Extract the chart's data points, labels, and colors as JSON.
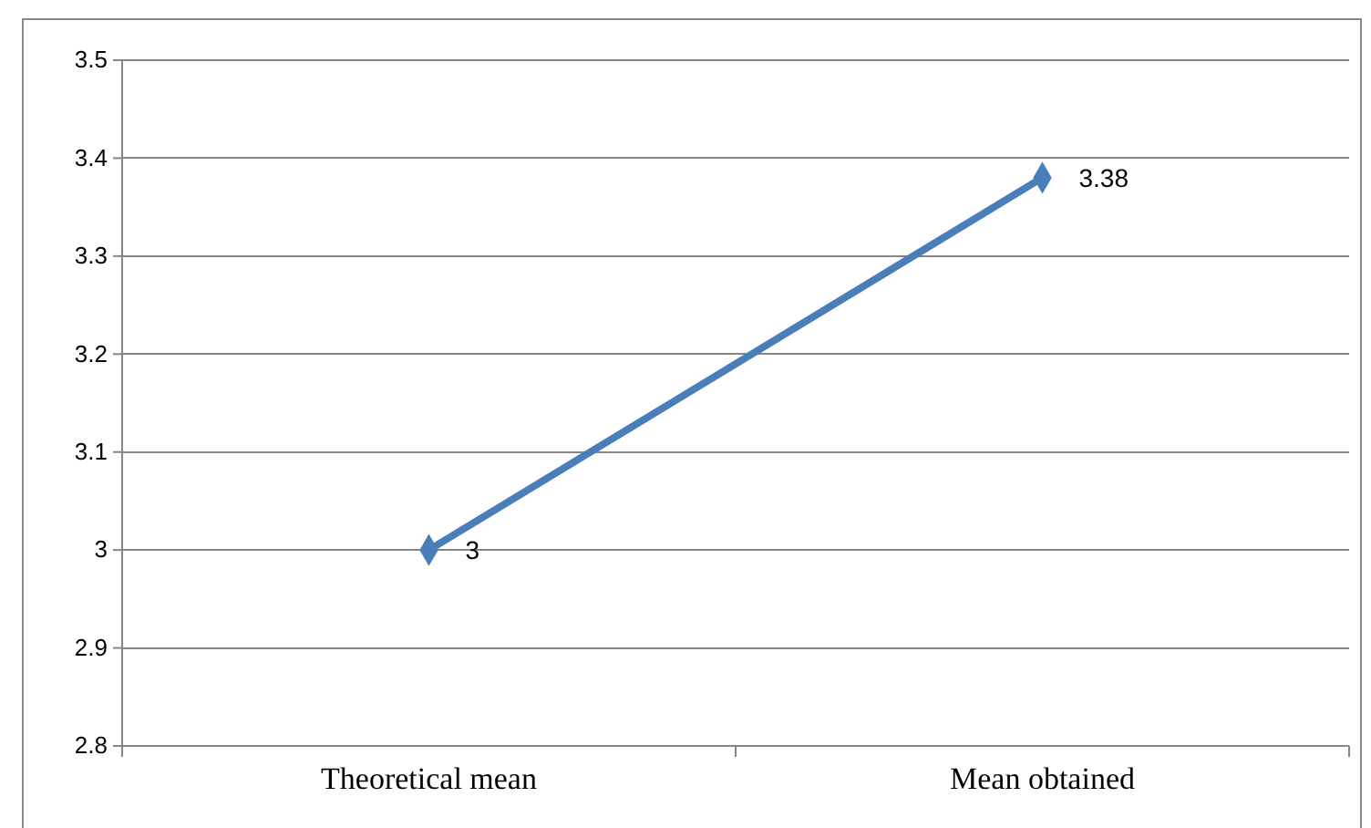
{
  "chart_data": {
    "type": "line",
    "categories": [
      "Theoretical mean",
      "Mean obtained"
    ],
    "series": [
      {
        "color": "#4a7ebb",
        "values": [
          3,
          3.38
        ]
      }
    ],
    "ylim": [
      2.8,
      3.5
    ],
    "yticks": [
      2.8,
      2.9,
      3,
      3.1,
      3.2,
      3.3,
      3.4,
      3.5
    ],
    "grid": "y",
    "marker": "diamond",
    "line_style": "solid",
    "data_labels": true
  }
}
